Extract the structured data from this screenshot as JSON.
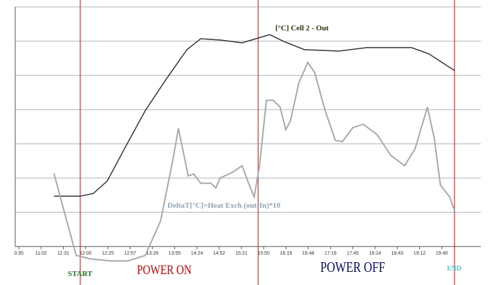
{
  "chart_data": {
    "type": "line",
    "xlim": [
      -0.16,
      20.75
    ],
    "xticks": [
      {
        "value": 0,
        "label": "0:35"
      },
      {
        "value": 1,
        "label": "11:02"
      },
      {
        "value": 2,
        "label": "11:31"
      },
      {
        "value": 3,
        "label": "12:00"
      },
      {
        "value": 4,
        "label": "12:25"
      },
      {
        "value": 5,
        "label": "12:57"
      },
      {
        "value": 6,
        "label": "13:26"
      },
      {
        "value": 7,
        "label": "13:55"
      },
      {
        "value": 8,
        "label": "14:24"
      },
      {
        "value": 9,
        "label": "14:52"
      },
      {
        "value": 10,
        "label": "15:21"
      },
      {
        "value": 11,
        "label": "15:50"
      },
      {
        "value": 12,
        "label": "16:19"
      },
      {
        "value": 13,
        "label": "16:48"
      },
      {
        "value": 14,
        "label": "17:16"
      },
      {
        "value": 15,
        "label": "17:45"
      },
      {
        "value": 16,
        "label": "18:14"
      },
      {
        "value": 17,
        "label": "18:43"
      },
      {
        "value": 18,
        "label": "19:12"
      },
      {
        "value": 19,
        "label": "19:40"
      }
    ],
    "ylim": [
      -0.6,
      7
    ],
    "yticks": [
      0,
      1,
      2,
      3,
      4,
      5,
      6,
      7
    ],
    "grid": true,
    "series": [
      {
        "name": "[°C] Cell 2 - Out",
        "color": "#333333",
        "label_color": "#333300",
        "x": [
          1.58,
          2.76,
          3.35,
          3.98,
          4.75,
          5.68,
          6.61,
          7.55,
          8.17,
          9.1,
          10.03,
          10.75,
          11.27,
          11.9,
          12.83,
          14.38,
          15.62,
          17.64,
          18.42,
          19.57
        ],
        "values": [
          1.47,
          1.47,
          1.55,
          1.92,
          2.86,
          3.97,
          4.88,
          5.75,
          6.07,
          6.03,
          5.95,
          6.09,
          6.19,
          5.99,
          5.75,
          5.71,
          5.81,
          5.81,
          5.63,
          5.14
        ]
      },
      {
        "name": "DeltaT[°C]=Heat Exch (out-In)*10",
        "color": "#a8a8a8",
        "label_color": "#8fa3b5",
        "x": [
          1.58,
          2.11,
          2.58,
          3.2,
          4.13,
          4.91,
          5.68,
          6.37,
          6.93,
          7.17,
          7.39,
          7.61,
          7.86,
          8.17,
          8.63,
          8.85,
          9.04,
          9.57,
          10.03,
          10.28,
          10.57,
          10.81,
          11.12,
          11.43,
          11.74,
          11.99,
          12.2,
          12.58,
          12.98,
          13.29,
          13.76,
          14.22,
          14.53,
          15.0,
          15.47,
          16.09,
          16.71,
          17.33,
          17.8,
          18.35,
          18.66,
          18.94,
          19.35,
          19.57
        ],
        "values": [
          2.14,
          0.85,
          -0.26,
          -0.36,
          -0.42,
          -0.42,
          -0.26,
          0.75,
          2.56,
          3.45,
          2.76,
          2.06,
          2.12,
          1.85,
          1.85,
          1.71,
          2.0,
          2.16,
          2.36,
          1.92,
          1.45,
          2.36,
          4.27,
          4.27,
          4.07,
          3.41,
          3.67,
          4.78,
          5.38,
          5.08,
          3.97,
          3.1,
          3.06,
          3.47,
          3.57,
          3.27,
          2.66,
          2.36,
          2.86,
          4.07,
          3.17,
          1.79,
          1.45,
          1.05
        ]
      }
    ],
    "markers": {
      "color": "#e00000",
      "x": [
        2.76,
        10.75,
        19.57
      ]
    },
    "annotations": [
      {
        "text": "START",
        "color": "#1a7a1a"
      },
      {
        "text": "POWER ON",
        "color": "#d40000"
      },
      {
        "text": "POWER OFF",
        "color": "#0b0b6e"
      },
      {
        "text": "END",
        "color": "#33dddd"
      }
    ]
  }
}
